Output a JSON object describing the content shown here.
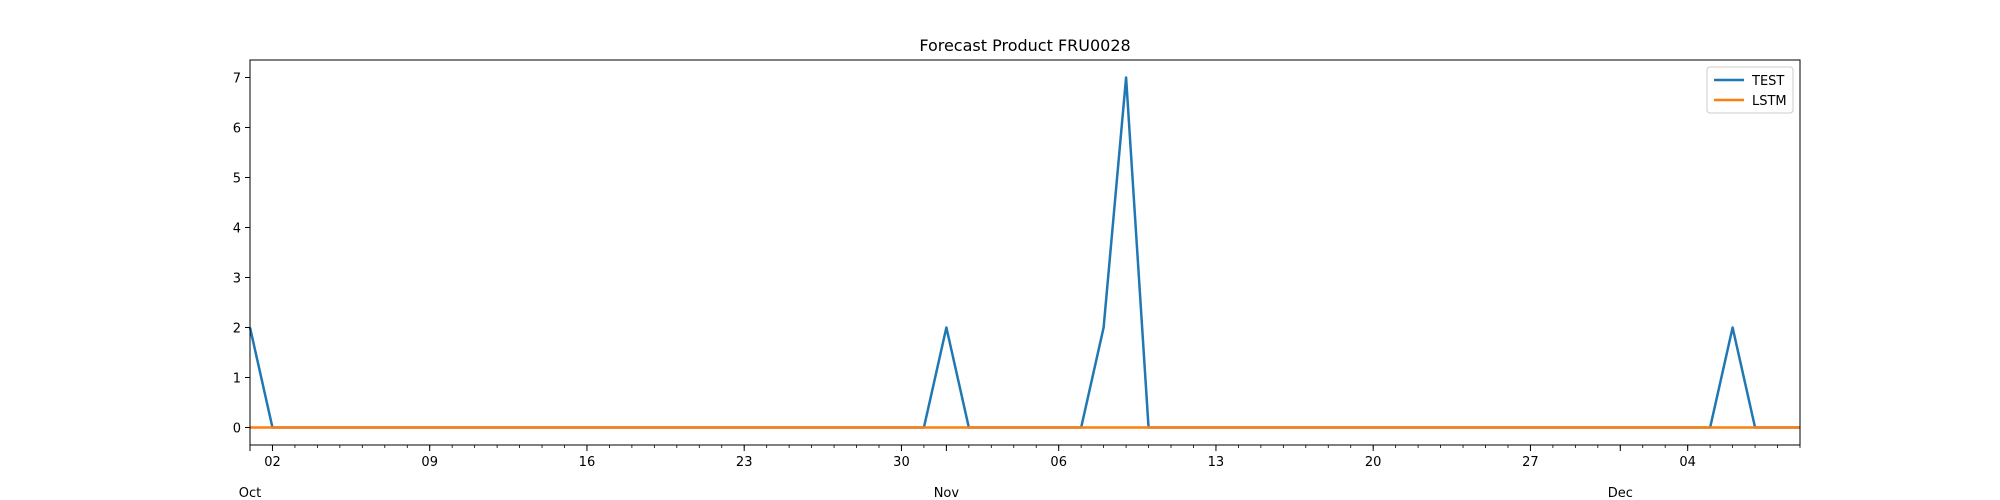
{
  "chart_data": {
    "type": "line",
    "title": "Forecast Product FRU0028",
    "xlabel": "",
    "ylabel": "",
    "x_start": "2023-10-01",
    "x_range": [
      "2023-10-01",
      "2023-12-09"
    ],
    "ylim": [
      -0.35,
      7.35
    ],
    "yticks": [
      0,
      1,
      2,
      3,
      4,
      5,
      6,
      7
    ],
    "xticks": [
      {
        "date": "2023-10-02",
        "label": "02"
      },
      {
        "date": "2023-10-09",
        "label": "09"
      },
      {
        "date": "2023-10-16",
        "label": "16"
      },
      {
        "date": "2023-10-23",
        "label": "23"
      },
      {
        "date": "2023-10-30",
        "label": "30"
      },
      {
        "date": "2023-11-06",
        "label": "06"
      },
      {
        "date": "2023-11-13",
        "label": "13"
      },
      {
        "date": "2023-11-20",
        "label": "20"
      },
      {
        "date": "2023-11-27",
        "label": "27"
      },
      {
        "date": "2023-12-04",
        "label": "04"
      }
    ],
    "month_labels": [
      {
        "date": "2023-10-01",
        "label": "Oct"
      },
      {
        "date": "2023-11-01",
        "label": "Nov"
      },
      {
        "date": "2023-12-01",
        "label": "Dec"
      }
    ],
    "grid": false,
    "legend": "top-right",
    "series": [
      {
        "name": "TEST",
        "color": "#1f77b4",
        "points": [
          {
            "x": "2023-10-01",
            "y": 2
          },
          {
            "x": "2023-10-02",
            "y": 0
          },
          {
            "x": "2023-10-31",
            "y": 0
          },
          {
            "x": "2023-11-01",
            "y": 2
          },
          {
            "x": "2023-11-02",
            "y": 0
          },
          {
            "x": "2023-11-07",
            "y": 0
          },
          {
            "x": "2023-11-08",
            "y": 2
          },
          {
            "x": "2023-11-09",
            "y": 7
          },
          {
            "x": "2023-11-10",
            "y": 0
          },
          {
            "x": "2023-12-05",
            "y": 0
          },
          {
            "x": "2023-12-06",
            "y": 2
          },
          {
            "x": "2023-12-07",
            "y": 0
          },
          {
            "x": "2023-12-09",
            "y": 0
          }
        ]
      },
      {
        "name": "LSTM",
        "color": "#ff7f0e",
        "points": [
          {
            "x": "2023-10-01",
            "y": 0
          },
          {
            "x": "2023-12-09",
            "y": 0
          }
        ]
      }
    ]
  }
}
